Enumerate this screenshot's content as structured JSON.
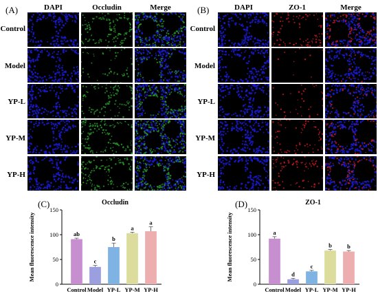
{
  "panelA": {
    "label": "(A)",
    "columns": [
      "DAPI",
      "Occludin",
      "Merge"
    ],
    "rows": [
      "Control",
      "Model",
      "YP-L",
      "YP-M",
      "YP-H"
    ]
  },
  "panelB": {
    "label": "(B)",
    "columns": [
      "DAPI",
      "ZO-1",
      "Merge"
    ],
    "rows": [
      "Control",
      "Model",
      "YP-L",
      "YP-M",
      "YP-H"
    ]
  },
  "colors": {
    "dapi": "#1a1ad0",
    "occludin": "#2a9e2a",
    "zo1": "#c41a1a",
    "bar_control": "#c78fd0",
    "bar_model": "#9b9fe0",
    "bar_ypl": "#7fb3e3",
    "bar_ypm": "#dcdc9c",
    "bar_yph": "#ecaeae"
  },
  "chart_data": [
    {
      "panel": "(C)",
      "type": "bar",
      "title": "Occludin",
      "xlabel": "",
      "ylabel": "Mean fluorescence intensity",
      "ylim": [
        0,
        150
      ],
      "yticks": [
        "0",
        "50",
        "100",
        "150"
      ],
      "categories": [
        "Control",
        "Model",
        "YP-L",
        "YP-M",
        "YP-H"
      ],
      "values": [
        91,
        35,
        75,
        103,
        107
      ],
      "errors": [
        2,
        3,
        8,
        2,
        9
      ],
      "letters": [
        "ab",
        "c",
        "b",
        "a",
        "a"
      ]
    },
    {
      "panel": "(D)",
      "type": "bar",
      "title": "ZO-1",
      "xlabel": "",
      "ylabel": "Mean fluorescence intensity",
      "ylim": [
        0,
        150
      ],
      "yticks": [
        "0",
        "50",
        "100",
        "150"
      ],
      "categories": [
        "Control",
        "Model",
        "YP-L",
        "YP-M",
        "YP-H"
      ],
      "values": [
        92,
        10,
        26,
        68,
        66
      ],
      "errors": [
        4,
        2,
        2,
        2,
        2
      ],
      "letters": [
        "a",
        "d",
        "c",
        "b",
        "b"
      ]
    }
  ]
}
